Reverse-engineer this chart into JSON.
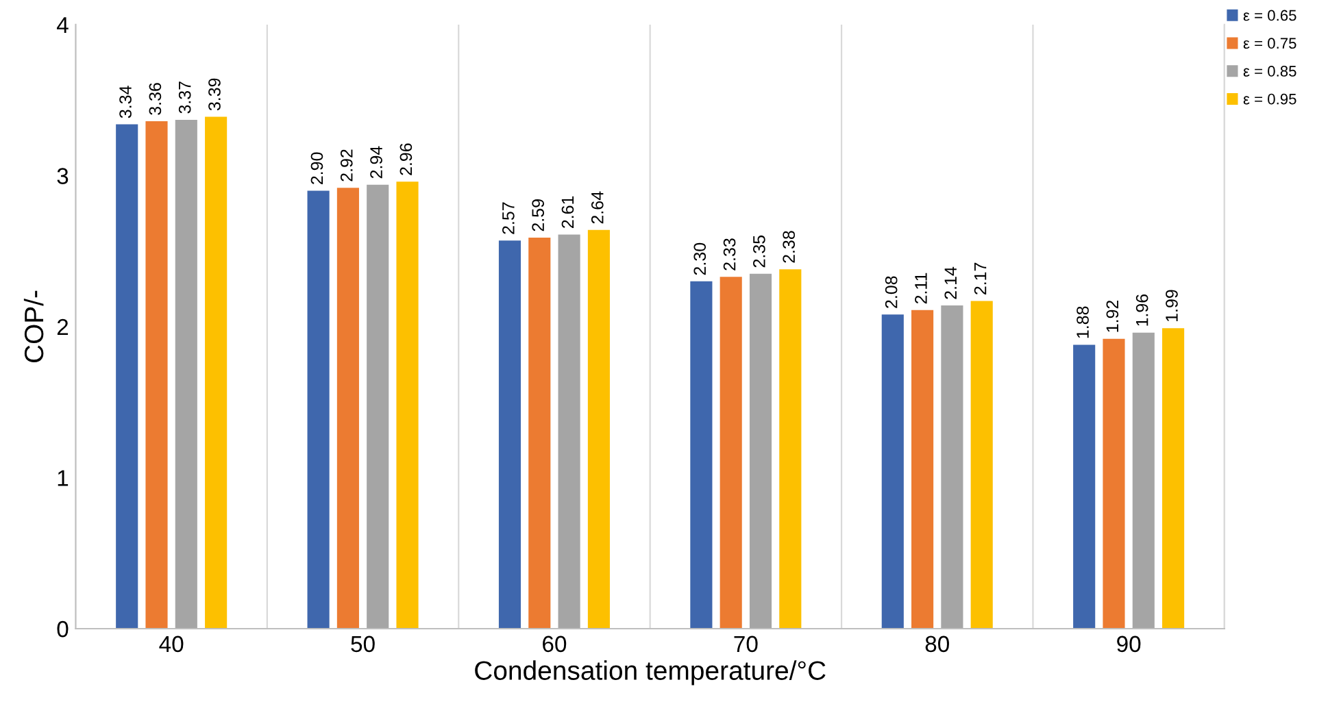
{
  "chart_data": {
    "type": "bar",
    "xlabel": "Condensation temperature/°C",
    "ylabel": "COP/-",
    "categories": [
      "40",
      "50",
      "60",
      "70",
      "80",
      "90"
    ],
    "series": [
      {
        "name": "ε = 0.65",
        "color": "#3f67ad",
        "values": [
          3.34,
          2.9,
          2.57,
          2.3,
          2.08,
          1.88
        ],
        "value_labels": [
          "3.34",
          "2.90",
          "2.57",
          "2.30",
          "2.08",
          "1.88"
        ]
      },
      {
        "name": "ε = 0.75",
        "color": "#ec7b31",
        "values": [
          3.36,
          2.92,
          2.59,
          2.33,
          2.11,
          1.92
        ],
        "value_labels": [
          "3.36",
          "2.92",
          "2.59",
          "2.33",
          "2.11",
          "1.92"
        ]
      },
      {
        "name": "ε = 0.85",
        "color": "#a5a5a5",
        "values": [
          3.37,
          2.94,
          2.61,
          2.35,
          2.14,
          1.96
        ],
        "value_labels": [
          "3.37",
          "2.94",
          "2.61",
          "2.35",
          "2.14",
          "1.96"
        ]
      },
      {
        "name": "ε = 0.95",
        "color": "#fdc000",
        "values": [
          3.39,
          2.96,
          2.64,
          2.38,
          2.17,
          1.99
        ],
        "value_labels": [
          "3.39",
          "2.96",
          "2.64",
          "2.38",
          "2.17",
          "1.99"
        ]
      }
    ],
    "ylim": [
      0,
      4
    ],
    "yticks": [
      0,
      1,
      2,
      3,
      4
    ],
    "grid": "x",
    "legend": "top right"
  }
}
